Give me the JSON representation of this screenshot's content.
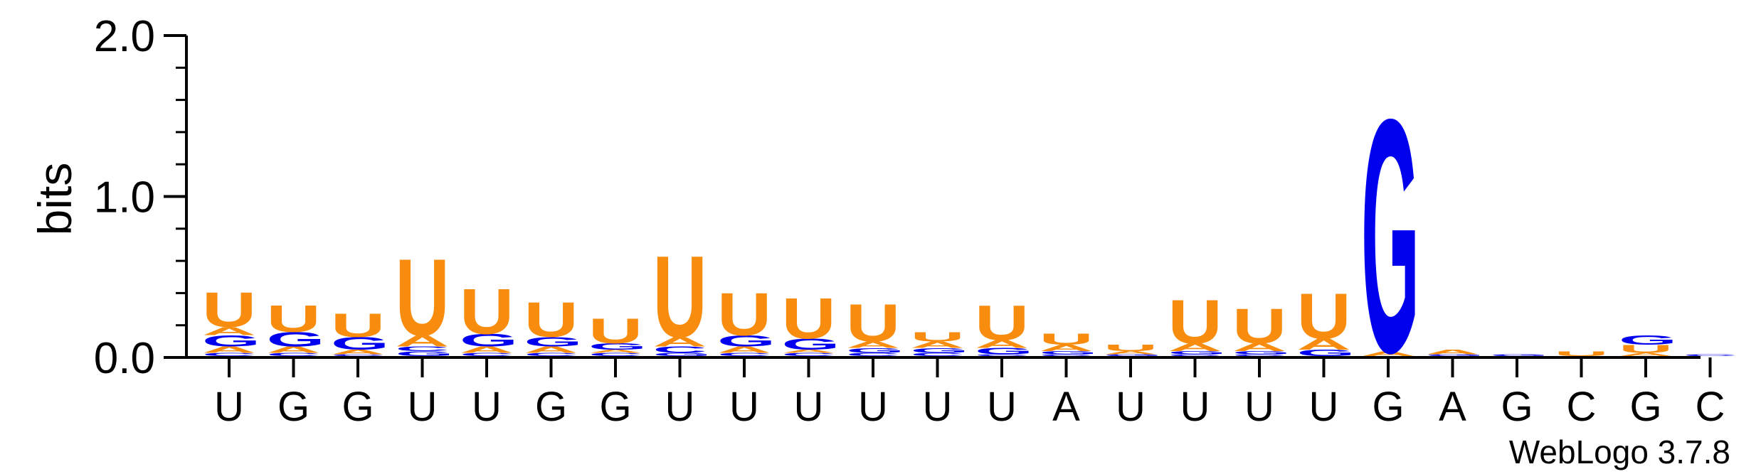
{
  "chart_data": {
    "type": "sequence-logo",
    "ylabel": "bits",
    "ylim": [
      0,
      2.0
    ],
    "yticks": [
      "0.0",
      "1.0",
      "2.0"
    ],
    "footer": "WebLogo 3.7.8",
    "colors": {
      "U": "#f78c0e",
      "G": "#0000ee",
      "A": "#f78c0e",
      "C": "#0000ee"
    },
    "consensus": [
      "U",
      "G",
      "G",
      "U",
      "U",
      "G",
      "G",
      "U",
      "U",
      "U",
      "U",
      "U",
      "U",
      "A",
      "U",
      "U",
      "U",
      "U",
      "G",
      "A",
      "G",
      "C",
      "G",
      "C"
    ],
    "positions": [
      {
        "stack": [
          {
            "l": "C",
            "h": 0.02
          },
          {
            "l": "A",
            "h": 0.04
          },
          {
            "l": "G",
            "h": 0.07
          },
          {
            "l": "A",
            "h": 0.05
          },
          {
            "l": "U",
            "h": 0.22
          }
        ]
      },
      {
        "stack": [
          {
            "l": "C",
            "h": 0.02
          },
          {
            "l": "A",
            "h": 0.04
          },
          {
            "l": "G",
            "h": 0.09
          },
          {
            "l": "U",
            "h": 0.17
          }
        ]
      },
      {
        "stack": [
          {
            "l": "C",
            "h": 0.01
          },
          {
            "l": "A",
            "h": 0.03
          },
          {
            "l": "G",
            "h": 0.08
          },
          {
            "l": "U",
            "h": 0.15
          }
        ]
      },
      {
        "stack": [
          {
            "l": "G",
            "h": 0.03
          },
          {
            "l": "C",
            "h": 0.03
          },
          {
            "l": "A",
            "h": 0.07
          },
          {
            "l": "U",
            "h": 0.49
          }
        ]
      },
      {
        "stack": [
          {
            "l": "C",
            "h": 0.02
          },
          {
            "l": "A",
            "h": 0.04
          },
          {
            "l": "G",
            "h": 0.08
          },
          {
            "l": "U",
            "h": 0.29
          }
        ]
      },
      {
        "stack": [
          {
            "l": "C",
            "h": 0.02
          },
          {
            "l": "A",
            "h": 0.04
          },
          {
            "l": "G",
            "h": 0.06
          },
          {
            "l": "U",
            "h": 0.22
          }
        ]
      },
      {
        "stack": [
          {
            "l": "C",
            "h": 0.02
          },
          {
            "l": "A",
            "h": 0.02
          },
          {
            "l": "G",
            "h": 0.04
          },
          {
            "l": "U",
            "h": 0.16
          }
        ]
      },
      {
        "stack": [
          {
            "l": "G",
            "h": 0.02
          },
          {
            "l": "C",
            "h": 0.04
          },
          {
            "l": "A",
            "h": 0.06
          },
          {
            "l": "U",
            "h": 0.52
          }
        ]
      },
      {
        "stack": [
          {
            "l": "C",
            "h": 0.02
          },
          {
            "l": "A",
            "h": 0.04
          },
          {
            "l": "G",
            "h": 0.07
          },
          {
            "l": "U",
            "h": 0.27
          }
        ]
      },
      {
        "stack": [
          {
            "l": "C",
            "h": 0.02
          },
          {
            "l": "A",
            "h": 0.02
          },
          {
            "l": "G",
            "h": 0.07
          },
          {
            "l": "U",
            "h": 0.26
          }
        ]
      },
      {
        "stack": [
          {
            "l": "C",
            "h": 0.02
          },
          {
            "l": "G",
            "h": 0.03
          },
          {
            "l": "A",
            "h": 0.04
          },
          {
            "l": "U",
            "h": 0.24
          }
        ]
      },
      {
        "stack": [
          {
            "l": "C",
            "h": 0.02
          },
          {
            "l": "G",
            "h": 0.03
          },
          {
            "l": "A",
            "h": 0.04
          },
          {
            "l": "U",
            "h": 0.06
          }
        ]
      },
      {
        "stack": [
          {
            "l": "C",
            "h": 0.01
          },
          {
            "l": "G",
            "h": 0.04
          },
          {
            "l": "A",
            "h": 0.05
          },
          {
            "l": "U",
            "h": 0.22
          }
        ]
      },
      {
        "stack": [
          {
            "l": "C",
            "h": 0.01
          },
          {
            "l": "G",
            "h": 0.02
          },
          {
            "l": "A",
            "h": 0.04
          },
          {
            "l": "U",
            "h": 0.07
          }
        ]
      },
      {
        "stack": [
          {
            "l": "G",
            "h": 0.01
          },
          {
            "l": "A",
            "h": 0.02
          },
          {
            "l": "U",
            "h": 0.04
          }
        ]
      },
      {
        "stack": [
          {
            "l": "C",
            "h": 0.01
          },
          {
            "l": "G",
            "h": 0.02
          },
          {
            "l": "A",
            "h": 0.05
          },
          {
            "l": "U",
            "h": 0.28
          }
        ]
      },
      {
        "stack": [
          {
            "l": "C",
            "h": 0.01
          },
          {
            "l": "G",
            "h": 0.02
          },
          {
            "l": "A",
            "h": 0.05
          },
          {
            "l": "U",
            "h": 0.22
          }
        ]
      },
      {
        "stack": [
          {
            "l": "G",
            "h": 0.04
          },
          {
            "l": "A",
            "h": 0.07
          },
          {
            "l": "U",
            "h": 0.29
          }
        ]
      },
      {
        "stack": [
          {
            "l": "A",
            "h": 0.03
          },
          {
            "l": "G",
            "h": 1.49
          }
        ]
      },
      {
        "stack": [
          {
            "l": "G",
            "h": 0.01
          },
          {
            "l": "A",
            "h": 0.03
          }
        ]
      },
      {
        "stack": [
          {
            "l": "G",
            "h": 0.01
          }
        ]
      },
      {
        "stack": [
          {
            "l": "U",
            "h": 0.03
          }
        ]
      },
      {
        "stack": [
          {
            "l": "A",
            "h": 0.02
          },
          {
            "l": "U",
            "h": 0.05
          },
          {
            "l": "G",
            "h": 0.06
          }
        ]
      },
      {
        "stack": [
          {
            "l": "C",
            "h": 0.01
          }
        ]
      }
    ]
  }
}
